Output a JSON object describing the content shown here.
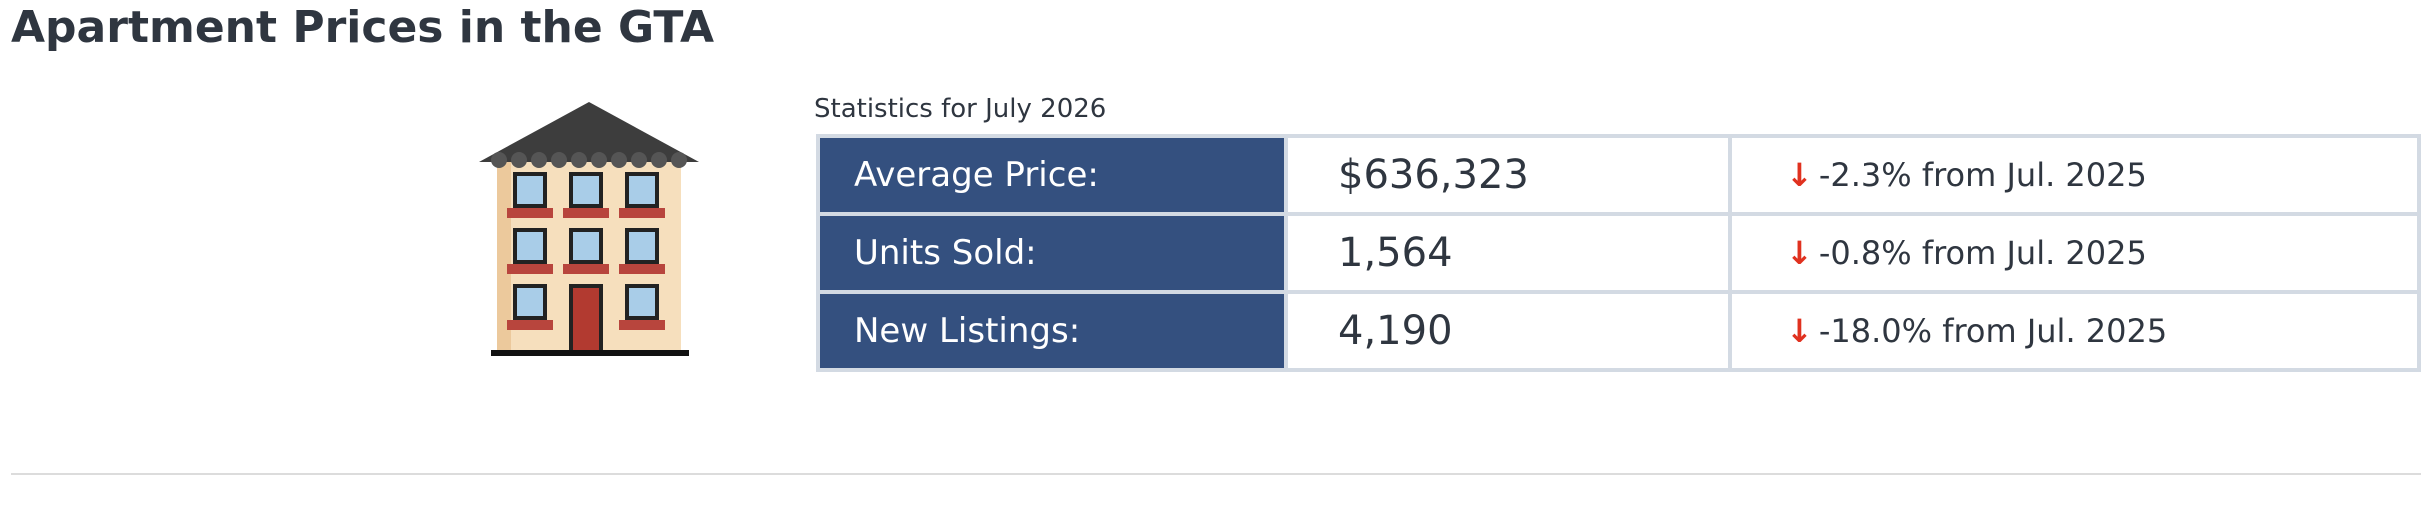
{
  "header": {
    "title": "Apartment Prices in the GTA"
  },
  "stats": {
    "caption": "Statistics for July 2026",
    "rows": [
      {
        "label": "Average Price:",
        "value": "$636,323",
        "change": "-2.3% from Jul. 2025"
      },
      {
        "label": "Units Sold:",
        "value": "1,564",
        "change": "-0.8% from Jul. 2025"
      },
      {
        "label": "New Listings:",
        "value": "4,190",
        "change": "-18.0% from Jul. 2025"
      }
    ]
  }
}
